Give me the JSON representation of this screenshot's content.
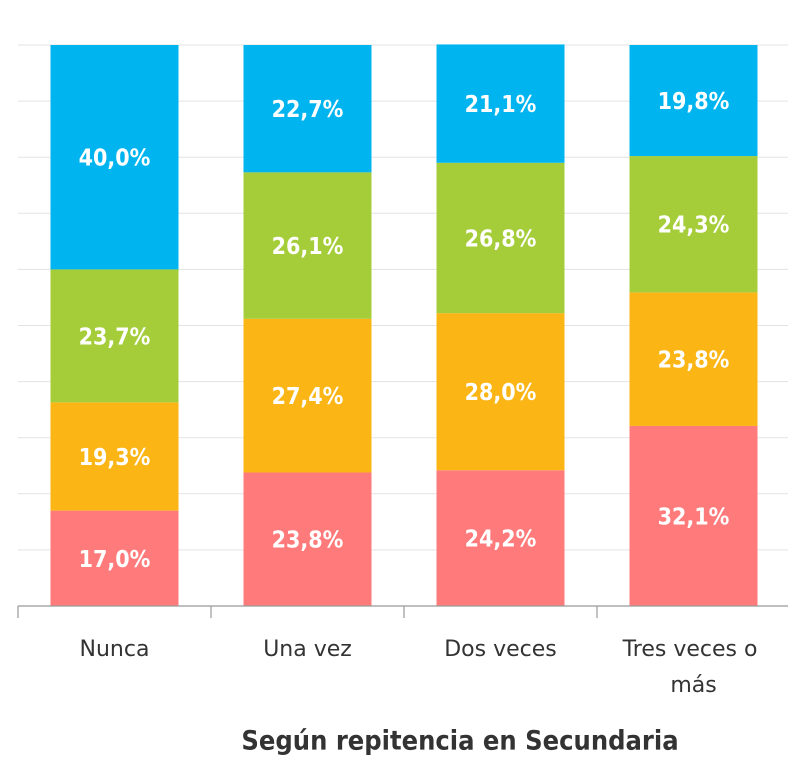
{
  "chart_data": {
    "type": "stacked_bar",
    "xlabel": "Según repitencia en Secundaria",
    "categories": [
      "Nunca",
      "Una vez",
      "Dos veces",
      "Tres veces o más"
    ],
    "series": [
      {
        "color": "#ff7b7b",
        "values": [
          17.0,
          23.8,
          24.2,
          32.1
        ],
        "value_labels": [
          "17,0%",
          "23,8%",
          "24,2%",
          "32,1%"
        ]
      },
      {
        "color": "#fbb515",
        "values": [
          19.3,
          27.4,
          28.0,
          23.8
        ],
        "value_labels": [
          "19,3%",
          "27,4%",
          "28,0%",
          "23,8%"
        ]
      },
      {
        "color": "#a5cd39",
        "values": [
          23.7,
          26.1,
          26.8,
          24.3
        ],
        "value_labels": [
          "23,7%",
          "26,1%",
          "26,8%",
          "24,3%"
        ]
      },
      {
        "color": "#00b5ef",
        "values": [
          40.0,
          22.7,
          21.1,
          19.8
        ],
        "value_labels": [
          "40,0%",
          "22,7%",
          "21,1%",
          "19,8%"
        ]
      }
    ],
    "ylim": [
      0,
      100
    ],
    "yticks": [
      0,
      10,
      20,
      30,
      40,
      50,
      60,
      70,
      80,
      90,
      100
    ],
    "grid": true
  }
}
